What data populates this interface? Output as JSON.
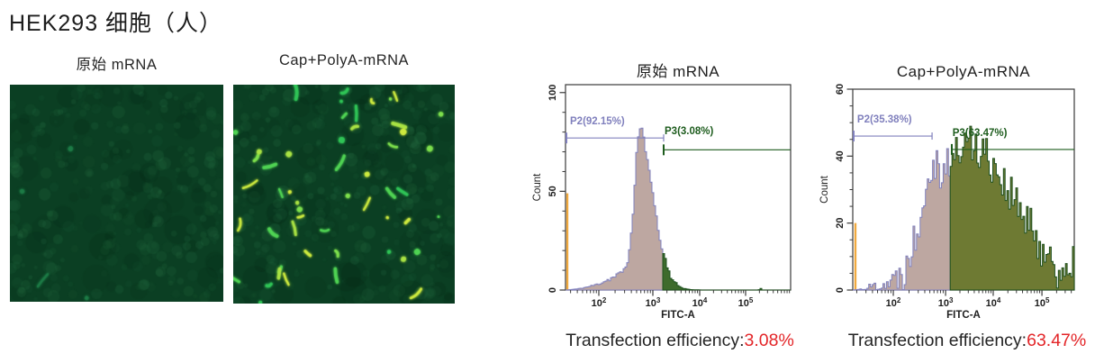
{
  "page_title": "HEK293 细胞（人）",
  "micrographs": [
    {
      "label": "原始 mRNA",
      "bg": "#0b3f23",
      "faint_cells": 260,
      "bright_cells": 4,
      "cell_colors": [
        "#1c7a45"
      ]
    },
    {
      "label": "Cap+PolyA-mRNA",
      "bg": "#0b3f23",
      "faint_cells": 300,
      "bright_cells": 52,
      "cell_colors": [
        "#2fc456",
        "#4fd353",
        "#7de04c",
        "#a9e243",
        "#cdea3e"
      ]
    }
  ],
  "results": [
    {
      "prefix": "Transfection efficiency:",
      "value": "3.08%"
    },
    {
      "prefix": "Transfection efficiency:",
      "value": "63.47%"
    }
  ],
  "colors": {
    "axis": "#3a3a3a",
    "tick_text": "#1e1e1e",
    "gate_p2": "#8080bd",
    "gate_p3": "#1d5c1d",
    "marker_orange": "#f0a93f",
    "efficiency_red": "#e32528"
  },
  "chart_data": [
    {
      "type": "histogram",
      "title": "原始 mRNA",
      "xlabel": "FITC-A",
      "ylabel": "Count",
      "x_scale": "biexponential-log",
      "x_ticks": [
        {
          "base": "10",
          "exp": "2",
          "fx": 0.148
        },
        {
          "base": "10",
          "exp": "3",
          "fx": 0.388
        },
        {
          "base": "10",
          "exp": "4",
          "fx": 0.596
        },
        {
          "base": "10",
          "exp": "5",
          "fx": 0.8
        }
      ],
      "ylim": [
        0,
        104
      ],
      "y_major_ticks": [
        0,
        50,
        100
      ],
      "y_minor_step": 10,
      "gate_fx": 0.436,
      "gates": [
        {
          "name": "P2",
          "label": "P2(92.15%)",
          "color": "#8080bd",
          "level": 77,
          "fx_start": 0.004,
          "fx_end": 0.436,
          "label_fx": 0.02,
          "label_count": 84,
          "end_tick": true
        },
        {
          "name": "P3",
          "label": "P3(3.08%)",
          "color": "#1d5c1d",
          "level": 71,
          "fx_start": 0.436,
          "fx_end": 1.0,
          "label_fx": 0.44,
          "label_count": 79,
          "end_tick": false
        }
      ],
      "marker": {
        "color": "#f0a93f",
        "fx": 0.008,
        "count_top": 49
      },
      "fill_neg": "#bda7a1",
      "stroke_neg": "#8080bd",
      "fill_pos": "#3e6b2c",
      "stroke_pos": "#1f521f",
      "noise": 1.3,
      "envelope": [
        [
          0,
          0
        ],
        [
          0.05,
          0.6
        ],
        [
          0.08,
          1.2
        ],
        [
          0.11,
          2
        ],
        [
          0.14,
          3
        ],
        [
          0.17,
          4.5
        ],
        [
          0.2,
          6
        ],
        [
          0.22,
          7
        ],
        [
          0.24,
          8.5
        ],
        [
          0.26,
          11
        ],
        [
          0.272,
          15
        ],
        [
          0.282,
          21
        ],
        [
          0.292,
          32
        ],
        [
          0.3,
          46
        ],
        [
          0.306,
          58
        ],
        [
          0.312,
          69
        ],
        [
          0.318,
          77
        ],
        [
          0.326,
          81
        ],
        [
          0.334,
          83
        ],
        [
          0.342,
          78
        ],
        [
          0.352,
          71
        ],
        [
          0.363,
          63
        ],
        [
          0.374,
          56
        ],
        [
          0.385,
          50
        ],
        [
          0.394,
          42
        ],
        [
          0.404,
          33
        ],
        [
          0.414,
          26
        ],
        [
          0.425,
          21
        ],
        [
          0.436,
          17
        ],
        [
          0.446,
          13
        ],
        [
          0.457,
          9
        ],
        [
          0.468,
          6
        ],
        [
          0.48,
          4
        ],
        [
          0.494,
          2.5
        ],
        [
          0.51,
          1.4
        ],
        [
          0.53,
          0.6
        ],
        [
          0.555,
          0.2
        ],
        [
          0.6,
          0
        ],
        [
          0.855,
          0
        ],
        [
          0.862,
          1.2
        ],
        [
          0.868,
          0
        ],
        [
          1,
          0
        ]
      ]
    },
    {
      "type": "histogram",
      "title": "Cap+PolyA-mRNA",
      "xlabel": "FITC-A",
      "ylabel": "Count",
      "x_scale": "biexponential-log",
      "x_ticks": [
        {
          "base": "10",
          "exp": "2",
          "fx": 0.183
        },
        {
          "base": "10",
          "exp": "3",
          "fx": 0.419
        },
        {
          "base": "10",
          "exp": "4",
          "fx": 0.634
        },
        {
          "base": "10",
          "exp": "5",
          "fx": 0.854
        }
      ],
      "ylim": [
        0,
        60
      ],
      "y_major_ticks": [
        0,
        20,
        40,
        60
      ],
      "y_minor_step": 5,
      "gate_fx": 0.443,
      "gates": [
        {
          "name": "P2",
          "label": "P2(35.38%)",
          "color": "#8080bd",
          "level": 46,
          "fx_start": 0.004,
          "fx_end": 0.358,
          "label_fx": 0.02,
          "label_count": 50,
          "end_tick": true
        },
        {
          "name": "P3",
          "label": "P3(63.47%)",
          "color": "#1d5c1d",
          "level": 42,
          "fx_start": 0.447,
          "fx_end": 1.0,
          "label_fx": 0.45,
          "label_count": 46,
          "end_tick": false
        }
      ],
      "marker": {
        "color": "#f0a93f",
        "fx": 0.012,
        "count_top": 20
      },
      "fill_neg": "#bda7a1",
      "stroke_neg": "#8080bd",
      "fill_pos": "#6e7a33",
      "stroke_pos": "#1d4f1d",
      "noise": 6.5,
      "envelope": [
        [
          0,
          0
        ],
        [
          0.05,
          0.4
        ],
        [
          0.07,
          0.9
        ],
        [
          0.1,
          1.4
        ],
        [
          0.13,
          1.8
        ],
        [
          0.16,
          2.4
        ],
        [
          0.18,
          3
        ],
        [
          0.2,
          4
        ],
        [
          0.22,
          6
        ],
        [
          0.24,
          8.5
        ],
        [
          0.26,
          12
        ],
        [
          0.28,
          17
        ],
        [
          0.3,
          23
        ],
        [
          0.32,
          30
        ],
        [
          0.34,
          36
        ],
        [
          0.355,
          40
        ],
        [
          0.37,
          39
        ],
        [
          0.385,
          36
        ],
        [
          0.4,
          37
        ],
        [
          0.42,
          38
        ],
        [
          0.443,
          38
        ],
        [
          0.46,
          40
        ],
        [
          0.48,
          42
        ],
        [
          0.5,
          44
        ],
        [
          0.53,
          44
        ],
        [
          0.56,
          43
        ],
        [
          0.59,
          41
        ],
        [
          0.62,
          39
        ],
        [
          0.65,
          36
        ],
        [
          0.68,
          32
        ],
        [
          0.71,
          28
        ],
        [
          0.74,
          25
        ],
        [
          0.77,
          21
        ],
        [
          0.8,
          18
        ],
        [
          0.83,
          15
        ],
        [
          0.86,
          12
        ],
        [
          0.89,
          9
        ],
        [
          0.92,
          7
        ],
        [
          0.95,
          5
        ],
        [
          0.97,
          3.5
        ],
        [
          0.985,
          3
        ],
        [
          0.993,
          7
        ],
        [
          1,
          0
        ]
      ]
    }
  ]
}
